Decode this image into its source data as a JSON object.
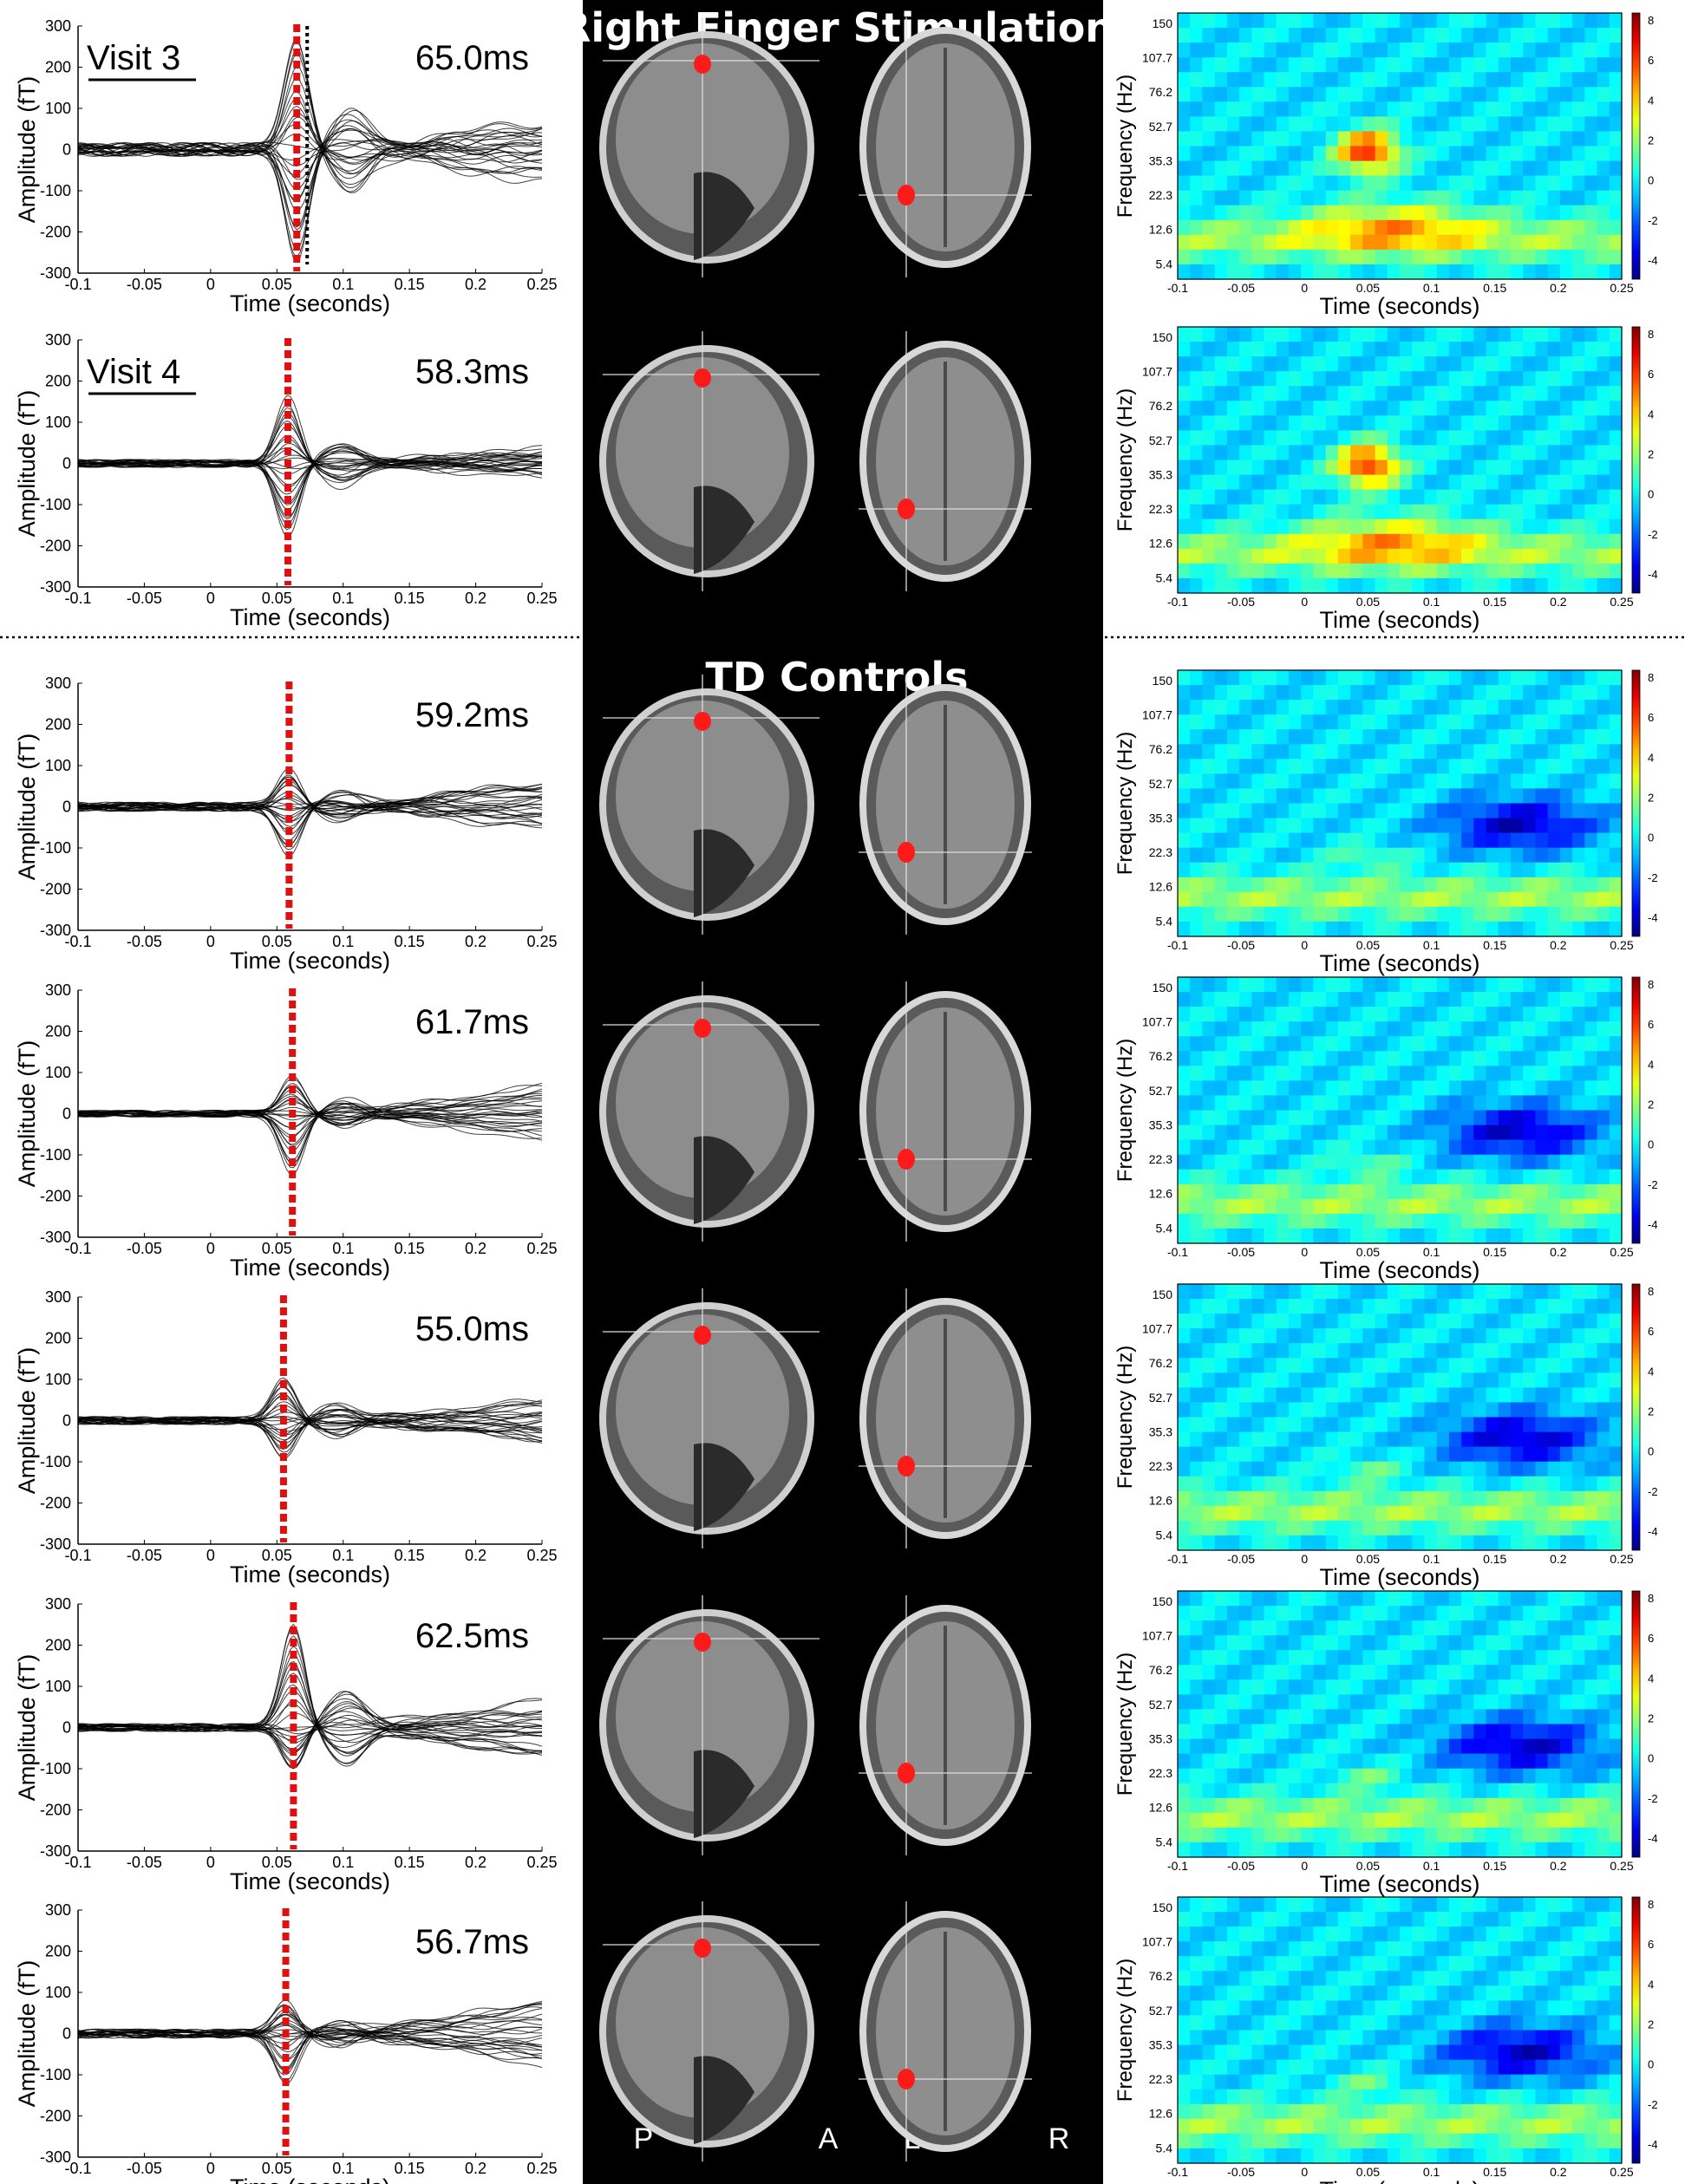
{
  "figure": {
    "top_title": "Right Finger Stimulation",
    "section_title": "TD Controls",
    "orientation_labels": [
      "P",
      "A",
      "L",
      "R"
    ]
  },
  "rows": [
    {
      "visit_label": "Visit 3",
      "latency": "65.0ms",
      "peak_amp": 280,
      "trough_amp": -280,
      "noise": 60,
      "late_spread": 80
    },
    {
      "visit_label": "Visit 4",
      "latency": "58.3ms",
      "peak_amp": 160,
      "trough_amp": -180,
      "noise": 35,
      "late_spread": 35
    },
    {
      "visit_label": "",
      "latency": "59.2ms",
      "peak_amp": 90,
      "trough_amp": -110,
      "noise": 40,
      "late_spread": 60
    },
    {
      "visit_label": "",
      "latency": "61.7ms",
      "peak_amp": 90,
      "trough_amp": -150,
      "noise": 30,
      "late_spread": 70
    },
    {
      "visit_label": "",
      "latency": "55.0ms",
      "peak_amp": 110,
      "trough_amp": -90,
      "noise": 35,
      "late_spread": 50
    },
    {
      "visit_label": "",
      "latency": "62.5ms",
      "peak_amp": 260,
      "trough_amp": -110,
      "noise": 35,
      "late_spread": 70
    },
    {
      "visit_label": "",
      "latency": "56.7ms",
      "peak_amp": 80,
      "trough_amp": -120,
      "noise": 40,
      "late_spread": 90
    }
  ],
  "chart_data": [
    {
      "type": "line",
      "description_panel": "MEG evoked waveforms (left column, 7 panels)",
      "xlabel": "Time (seconds)",
      "ylabel": "Amplitude (fT)",
      "xlim": [
        -0.1,
        0.25
      ],
      "ylim": [
        -300,
        300
      ],
      "xticks": [
        "-0.1",
        "-0.05",
        "0",
        "0.05",
        "0.1",
        "0.15",
        "0.2",
        "0.25"
      ],
      "yticks": [
        "300",
        "200",
        "100",
        "0",
        "-100",
        "-200",
        "-300"
      ],
      "marker_times_s": [
        0.065,
        0.0583,
        0.0592,
        0.0617,
        0.055,
        0.0625,
        0.0567
      ]
    },
    {
      "type": "heatmap",
      "description_panel": "Time-frequency maps (right column, 7 panels)",
      "xlabel": "Time (seconds)",
      "ylabel": "Frequency (Hz)",
      "xlim": [
        -0.1,
        0.25
      ],
      "xticks": [
        "-0.1",
        "-0.05",
        "0",
        "0.05",
        "0.1",
        "0.15",
        "0.2",
        "0.25"
      ],
      "yticks": [
        "150",
        "107.7",
        "76.2",
        "52.7",
        "35.3",
        "22.3",
        "12.6",
        "5.4"
      ],
      "colorbar_ticks": [
        "8",
        "6",
        "4",
        "2",
        "0",
        "-2",
        "-4"
      ],
      "colorbar_range": [
        -5,
        8
      ]
    }
  ],
  "colors": {
    "marker": "#e11010",
    "panel_bg": "#000000"
  }
}
